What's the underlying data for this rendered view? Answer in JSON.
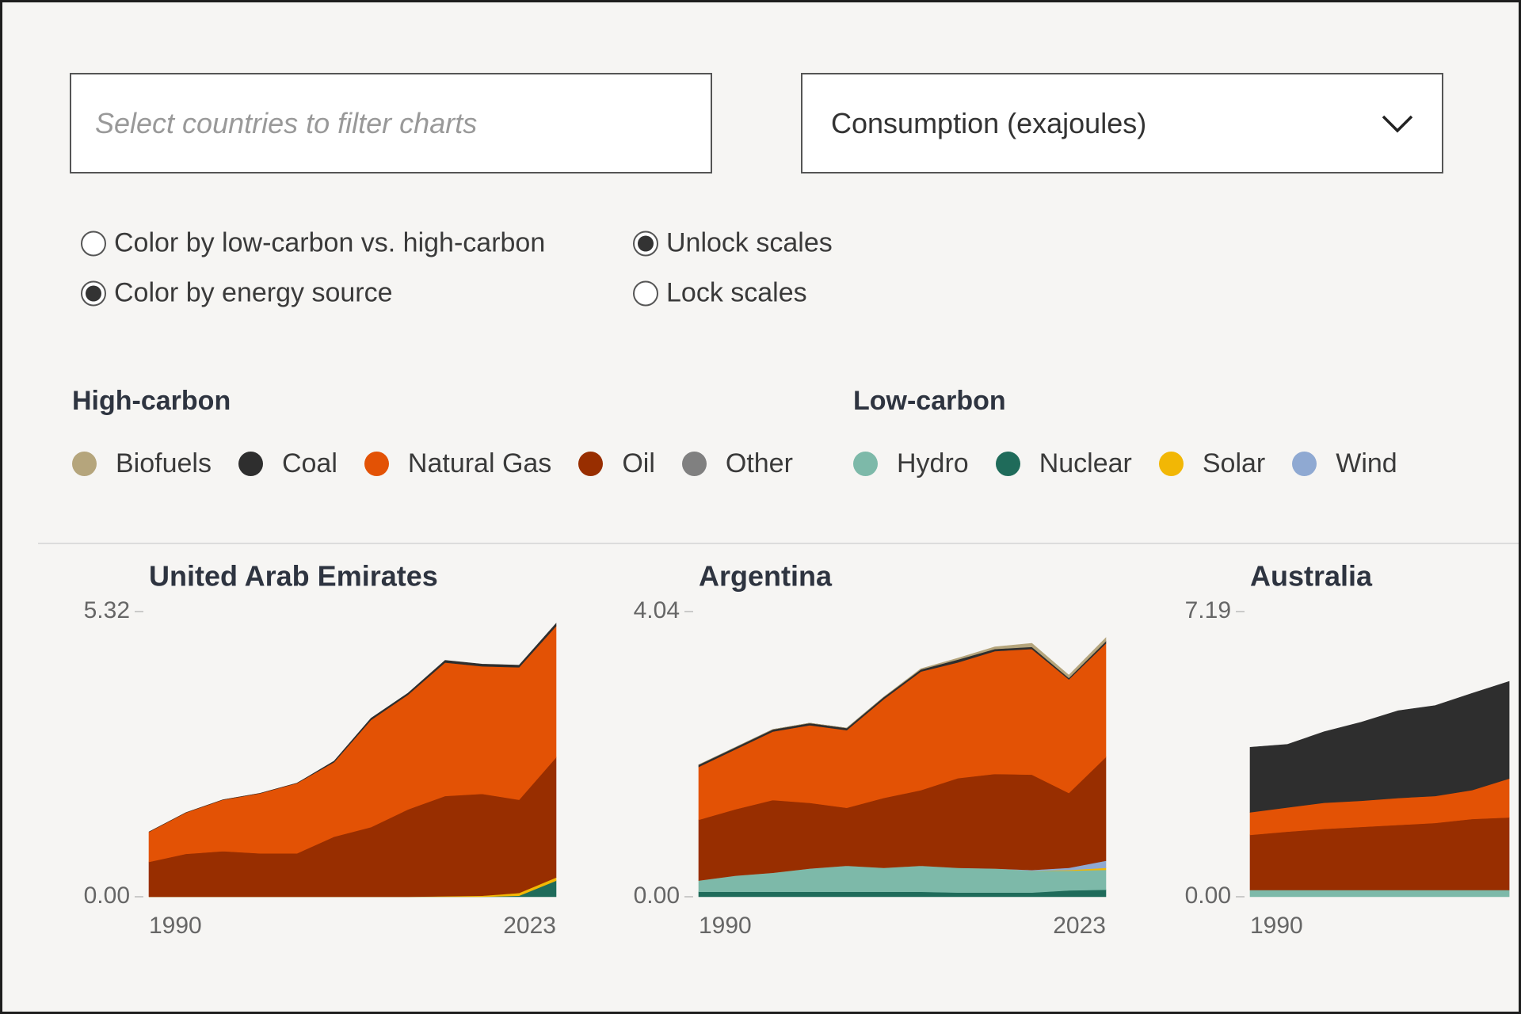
{
  "filters": {
    "country_search": {
      "placeholder": "Select countries to filter charts"
    },
    "metric_select": {
      "value": "Consumption (exajoules)"
    }
  },
  "options": {
    "color_mode": [
      {
        "label": "Color by low-carbon vs. high-carbon",
        "selected": false
      },
      {
        "label": "Color by energy source",
        "selected": true
      }
    ],
    "scale_mode": [
      {
        "label": "Unlock scales",
        "selected": true
      },
      {
        "label": "Lock scales",
        "selected": false
      }
    ]
  },
  "legend": [
    {
      "title": "High-carbon",
      "items": [
        {
          "name": "Biofuels",
          "color": "#b5a57c"
        },
        {
          "name": "Coal",
          "color": "#2e2e2e"
        },
        {
          "name": "Natural Gas",
          "color": "#e35205"
        },
        {
          "name": "Oil",
          "color": "#982e00"
        },
        {
          "name": "Other",
          "color": "#808080"
        }
      ]
    },
    {
      "title": "Low-carbon",
      "items": [
        {
          "name": "Hydro",
          "color": "#7db9a9"
        },
        {
          "name": "Nuclear",
          "color": "#1f6b5a"
        },
        {
          "name": "Solar",
          "color": "#f2b705"
        },
        {
          "name": "Wind",
          "color": "#8fa9d2"
        }
      ]
    }
  ],
  "chart_data": [
    {
      "type": "area",
      "title": "United Arab Emirates",
      "x": [
        1990,
        1993,
        1996,
        1999,
        2002,
        2005,
        2008,
        2011,
        2014,
        2017,
        2020,
        2023
      ],
      "xlim": [
        1990,
        2023
      ],
      "xticks": [
        1990,
        2023
      ],
      "ylim": [
        0,
        5.32
      ],
      "yticks": [
        {
          "value": 0,
          "label": "0.00"
        },
        5.32
      ],
      "series": [
        {
          "name": "Nuclear",
          "color": "#1f6b5a",
          "values": [
            0,
            0,
            0,
            0,
            0,
            0,
            0,
            0,
            0,
            0,
            0.02,
            0.3
          ]
        },
        {
          "name": "Solar",
          "color": "#f2b705",
          "values": [
            0,
            0,
            0,
            0,
            0,
            0,
            0,
            0,
            0.01,
            0.02,
            0.05,
            0.06
          ]
        },
        {
          "name": "Oil",
          "color": "#982e00",
          "values": [
            0.65,
            0.8,
            0.85,
            0.81,
            0.81,
            1.12,
            1.3,
            1.63,
            1.87,
            1.9,
            1.74,
            2.24
          ]
        },
        {
          "name": "Natural Gas",
          "color": "#e35205",
          "values": [
            0.56,
            0.77,
            0.96,
            1.12,
            1.31,
            1.39,
            2.0,
            2.14,
            2.49,
            2.38,
            2.47,
            2.45
          ]
        },
        {
          "name": "Coal",
          "color": "#2e2e2e",
          "values": [
            0,
            0,
            0,
            0,
            0,
            0.02,
            0.03,
            0.03,
            0.04,
            0.04,
            0.04,
            0.05
          ]
        }
      ]
    },
    {
      "type": "area",
      "title": "Argentina",
      "x": [
        1990,
        1993,
        1996,
        1999,
        2002,
        2005,
        2008,
        2011,
        2014,
        2017,
        2020,
        2023
      ],
      "xlim": [
        1990,
        2023
      ],
      "xticks": [
        1990,
        2023
      ],
      "ylim": [
        0,
        4.04
      ],
      "yticks": [
        {
          "value": 0,
          "label": "0.00"
        },
        4.04
      ],
      "series": [
        {
          "name": "Nuclear",
          "color": "#1f6b5a",
          "values": [
            0.07,
            0.07,
            0.07,
            0.07,
            0.07,
            0.07,
            0.07,
            0.06,
            0.06,
            0.06,
            0.09,
            0.1
          ]
        },
        {
          "name": "Hydro",
          "color": "#7db9a9",
          "values": [
            0.16,
            0.23,
            0.27,
            0.33,
            0.37,
            0.34,
            0.37,
            0.35,
            0.34,
            0.31,
            0.28,
            0.28
          ]
        },
        {
          "name": "Solar",
          "color": "#f2b705",
          "values": [
            0,
            0,
            0,
            0,
            0,
            0,
            0,
            0,
            0,
            0,
            0.01,
            0.03
          ]
        },
        {
          "name": "Wind",
          "color": "#8fa9d2",
          "values": [
            0,
            0,
            0,
            0,
            0,
            0,
            0,
            0,
            0,
            0.01,
            0.03,
            0.1
          ]
        },
        {
          "name": "Oil",
          "color": "#982e00",
          "values": [
            0.86,
            0.94,
            1.03,
            0.93,
            0.82,
            0.99,
            1.07,
            1.27,
            1.34,
            1.35,
            1.06,
            1.47
          ]
        },
        {
          "name": "Natural Gas",
          "color": "#e35205",
          "values": [
            0.75,
            0.85,
            0.97,
            1.1,
            1.1,
            1.4,
            1.68,
            1.64,
            1.74,
            1.78,
            1.61,
            1.61
          ]
        },
        {
          "name": "Coal",
          "color": "#2e2e2e",
          "values": [
            0.03,
            0.03,
            0.03,
            0.03,
            0.03,
            0.03,
            0.03,
            0.04,
            0.03,
            0.03,
            0.02,
            0.03
          ]
        },
        {
          "name": "Biofuels",
          "color": "#b5a57c",
          "values": [
            0,
            0,
            0,
            0,
            0,
            0,
            0.01,
            0.02,
            0.03,
            0.05,
            0.04,
            0.05
          ]
        }
      ]
    },
    {
      "type": "area",
      "title": "Australia",
      "x": [
        1990,
        1993,
        1996,
        1999,
        2002,
        2005,
        2008,
        2011
      ],
      "xlim": [
        1990,
        2023
      ],
      "xticks": [
        1990
      ],
      "ylim": [
        0,
        7.19
      ],
      "yticks": [
        {
          "value": 0,
          "label": "0.00"
        },
        7.19
      ],
      "series": [
        {
          "name": "Hydro",
          "color": "#7db9a9",
          "values": [
            0.17,
            0.17,
            0.17,
            0.17,
            0.17,
            0.17,
            0.17,
            0.17
          ]
        },
        {
          "name": "Oil",
          "color": "#982e00",
          "values": [
            1.39,
            1.47,
            1.54,
            1.59,
            1.64,
            1.69,
            1.79,
            1.83
          ]
        },
        {
          "name": "Natural Gas",
          "color": "#e35205",
          "values": [
            0.57,
            0.61,
            0.66,
            0.66,
            0.68,
            0.68,
            0.73,
            0.98
          ]
        },
        {
          "name": "Coal",
          "color": "#2e2e2e",
          "values": [
            1.64,
            1.59,
            1.79,
            1.98,
            2.2,
            2.28,
            2.44,
            2.45
          ]
        }
      ]
    }
  ]
}
